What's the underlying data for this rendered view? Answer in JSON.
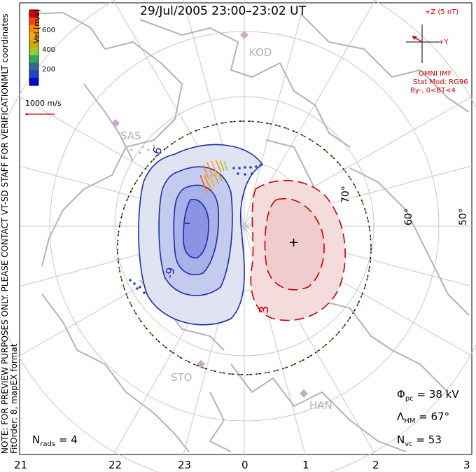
{
  "title": "29/Jul/2005 23:00–23:02 UT",
  "velocity_scale": {
    "label": "Vel [m/s]",
    "ticks": [
      "600",
      "400",
      "200"
    ],
    "colors": [
      "#d40000",
      "#ff4400",
      "#ff8800",
      "#ffaa00",
      "#ccaa00",
      "#99cc33",
      "#33aa55",
      "#336699",
      "#2244bb",
      "#0000dd"
    ]
  },
  "ref_vector_label": "1000 m/s",
  "coordinates_label": "MLT coordinates",
  "side_note_line1": "NOTE: FOR PREVIEW PURPOSES ONLY. PLEASE CONTACT VT-SD STAFF FOR VERIFICATION.",
  "side_note_line2": "FitOrder: 8, mapEX format",
  "imf": {
    "z_label": "+Z (5 nT)",
    "y_label": "+Y",
    "source": "OMNI IMF",
    "model": "Stat Mod: RG96",
    "condition": "By-, 0<BT<4"
  },
  "stations": [
    "KOD",
    "SAS",
    "STO",
    "HAN"
  ],
  "latitude_labels": [
    "70°",
    "60°",
    "50°"
  ],
  "contour_labels": {
    "neg": "-6",
    "neg2": "-9",
    "pos": "3"
  },
  "center_markers": {
    "min": "–",
    "max": "+"
  },
  "stats": {
    "phi_pc": {
      "symbol": "Φ",
      "sub": "pc",
      "value": "= 38 kV"
    },
    "lambda_hm": {
      "symbol": "Λ",
      "sub": "HM",
      "value": "= 67°"
    },
    "n_vc": {
      "symbol": "N",
      "sub": "vc",
      "value": "= 53"
    },
    "n_rads": {
      "symbol": "N",
      "sub": "rads",
      "value": "= 4"
    }
  },
  "mlt_labels": [
    "21",
    "22",
    "23",
    "0",
    "1",
    "2",
    "3"
  ],
  "colors": {
    "negative_contour": "#1c2ea8",
    "positive_contour": "#c80000",
    "grid": "#c8c8c8",
    "coast": "#b4b4b4",
    "boundary_green": "#66cc33"
  }
}
